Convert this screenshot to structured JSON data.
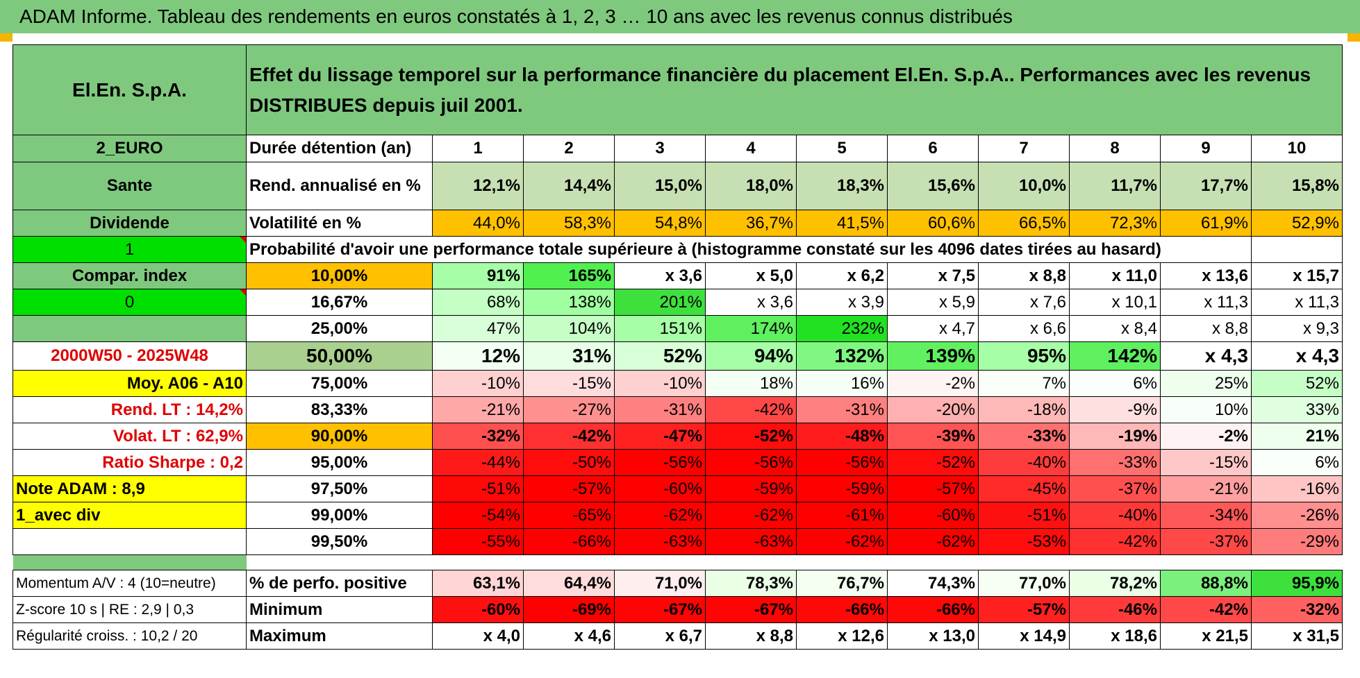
{
  "header": {
    "title": "ADAM Informe. Tableau des rendements en euros constatés à 1, 2, 3 … 10 ans avec les revenus connus distribués"
  },
  "table": {
    "fund_name": "El.En. S.p.A.",
    "description": "Effet du lissage temporel sur la performance financière du placement El.En. S.p.A.. Performances avec les revenus DISTRIBUES depuis juil 2001.",
    "side_labels": {
      "currency": "2_EURO",
      "sector": "Sante",
      "type": "Dividende",
      "flag1": "1",
      "compar": "Compar. index",
      "flag2": "0",
      "period": "2000W50 - 2025W48",
      "moy": "Moy. A06 - A10",
      "rend_lt": "Rend. LT :    14,2%",
      "volat_lt": "Volat. LT :    62,9%",
      "sharpe": "Ratio Sharpe :    0,2",
      "note": "Note ADAM : 8,9",
      "div": "1_avec div",
      "momentum": "Momentum A/V : 4 (10=neutre)",
      "zscore": "Z-score 10 s | RE : 2,9 | 0,3",
      "regularite": "Régularité croiss. : 10,2 / 20"
    },
    "row_labels": {
      "duree": "Durée détention (an)",
      "rend": "Rend. annualisé en %",
      "volat": "Volatilité en %",
      "proba": "Probabilité d'avoir une performance totale supérieure à (histogramme constaté sur les 4096 dates tirées au hasard)",
      "perfo_pos": "% de perfo. positive",
      "minimum": "Minimum",
      "maximum": "Maximum"
    },
    "years": [
      "1",
      "2",
      "3",
      "4",
      "5",
      "6",
      "7",
      "8",
      "9",
      "10"
    ],
    "rend": [
      "12,1%",
      "14,4%",
      "15,0%",
      "18,0%",
      "18,3%",
      "15,6%",
      "10,0%",
      "11,7%",
      "17,7%",
      "15,8%"
    ],
    "volat": [
      "44,0%",
      "58,3%",
      "54,8%",
      "36,7%",
      "41,5%",
      "60,6%",
      "66,5%",
      "72,3%",
      "61,9%",
      "52,9%"
    ],
    "percentiles": [
      {
        "p": "10,00%",
        "values": [
          "91%",
          "165%",
          "x 3,6",
          "x 5,0",
          "x 6,2",
          "x 7,5",
          "x 8,8",
          "x 11,0",
          "x 13,6",
          "x 15,7"
        ]
      },
      {
        "p": "16,67%",
        "values": [
          "68%",
          "138%",
          "201%",
          "x 3,6",
          "x 3,9",
          "x 5,9",
          "x 7,6",
          "x 10,1",
          "x 11,3",
          "x 11,3"
        ]
      },
      {
        "p": "25,00%",
        "values": [
          "47%",
          "104%",
          "151%",
          "174%",
          "232%",
          "x 4,7",
          "x 6,6",
          "x 8,4",
          "x 8,8",
          "x 9,3"
        ]
      },
      {
        "p": "50,00%",
        "values": [
          "12%",
          "31%",
          "52%",
          "94%",
          "132%",
          "139%",
          "95%",
          "142%",
          "x 4,3",
          "x 4,3"
        ]
      },
      {
        "p": "75,00%",
        "values": [
          "-10%",
          "-15%",
          "-10%",
          "18%",
          "16%",
          "-2%",
          "7%",
          "6%",
          "25%",
          "52%"
        ]
      },
      {
        "p": "83,33%",
        "values": [
          "-21%",
          "-27%",
          "-31%",
          "-42%",
          "-31%",
          "-20%",
          "-18%",
          "-9%",
          "10%",
          "33%"
        ]
      },
      {
        "p": "90,00%",
        "values": [
          "-32%",
          "-42%",
          "-47%",
          "-52%",
          "-48%",
          "-39%",
          "-33%",
          "-19%",
          "-2%",
          "21%"
        ]
      },
      {
        "p": "95,00%",
        "values": [
          "-44%",
          "-50%",
          "-56%",
          "-56%",
          "-56%",
          "-52%",
          "-40%",
          "-33%",
          "-15%",
          "6%"
        ]
      },
      {
        "p": "97,50%",
        "values": [
          "-51%",
          "-57%",
          "-60%",
          "-59%",
          "-59%",
          "-57%",
          "-45%",
          "-37%",
          "-21%",
          "-16%"
        ]
      },
      {
        "p": "99,00%",
        "values": [
          "-54%",
          "-65%",
          "-62%",
          "-62%",
          "-61%",
          "-60%",
          "-51%",
          "-40%",
          "-34%",
          "-26%"
        ]
      },
      {
        "p": "99,50%",
        "values": [
          "-55%",
          "-66%",
          "-63%",
          "-63%",
          "-62%",
          "-62%",
          "-53%",
          "-42%",
          "-37%",
          "-29%"
        ]
      }
    ],
    "perfo_pos": [
      "63,1%",
      "64,4%",
      "71,0%",
      "78,3%",
      "76,7%",
      "74,3%",
      "77,0%",
      "78,2%",
      "88,8%",
      "95,9%"
    ],
    "minimum": [
      "-60%",
      "-69%",
      "-67%",
      "-67%",
      "-66%",
      "-66%",
      "-57%",
      "-46%",
      "-42%",
      "-32%"
    ],
    "maximum": [
      "x 4,0",
      "x 4,6",
      "x 6,7",
      "x 8,8",
      "x 12,6",
      "x 13,0",
      "x 14,9",
      "x 18,6",
      "x 21,5",
      "x 31,5"
    ]
  },
  "colors": {
    "header_green": "#7fc97f",
    "lime": "#00e000",
    "yellow": "#ffff00",
    "orange": "#ffc000",
    "label_red": "#e00000"
  }
}
